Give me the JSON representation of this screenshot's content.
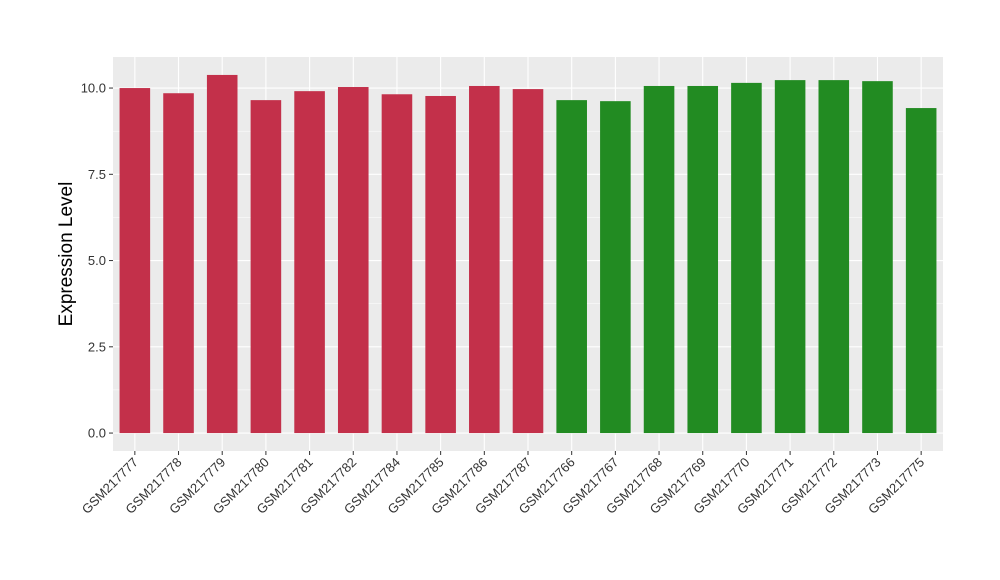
{
  "chart_data": {
    "type": "bar",
    "title": "",
    "xlabel": "",
    "ylabel": "Expression Level",
    "ylim": [
      -0.52,
      10.9
    ],
    "yticks": [
      "0.0",
      "2.5",
      "5.0",
      "7.5",
      "10.0"
    ],
    "ytick_values": [
      0,
      2.5,
      5,
      7.5,
      10
    ],
    "grid": true,
    "legend": "none",
    "categories": [
      "GSM217777",
      "GSM217778",
      "GSM217779",
      "GSM217780",
      "GSM217781",
      "GSM217782",
      "GSM217784",
      "GSM217785",
      "GSM217786",
      "GSM217787",
      "GSM217766",
      "GSM217767",
      "GSM217768",
      "GSM217769",
      "GSM217770",
      "GSM217771",
      "GSM217772",
      "GSM217773",
      "GSM217775"
    ],
    "values": [
      10.0,
      9.85,
      10.38,
      9.65,
      9.91,
      10.03,
      9.82,
      9.77,
      10.06,
      9.97,
      9.65,
      9.62,
      10.06,
      10.06,
      10.15,
      10.23,
      10.23,
      10.2,
      9.42
    ],
    "groups": [
      "a",
      "a",
      "a",
      "a",
      "a",
      "a",
      "a",
      "a",
      "a",
      "a",
      "b",
      "b",
      "b",
      "b",
      "b",
      "b",
      "b",
      "b",
      "b"
    ],
    "colors": {
      "a": "#C3304A",
      "b": "#228B22"
    }
  }
}
